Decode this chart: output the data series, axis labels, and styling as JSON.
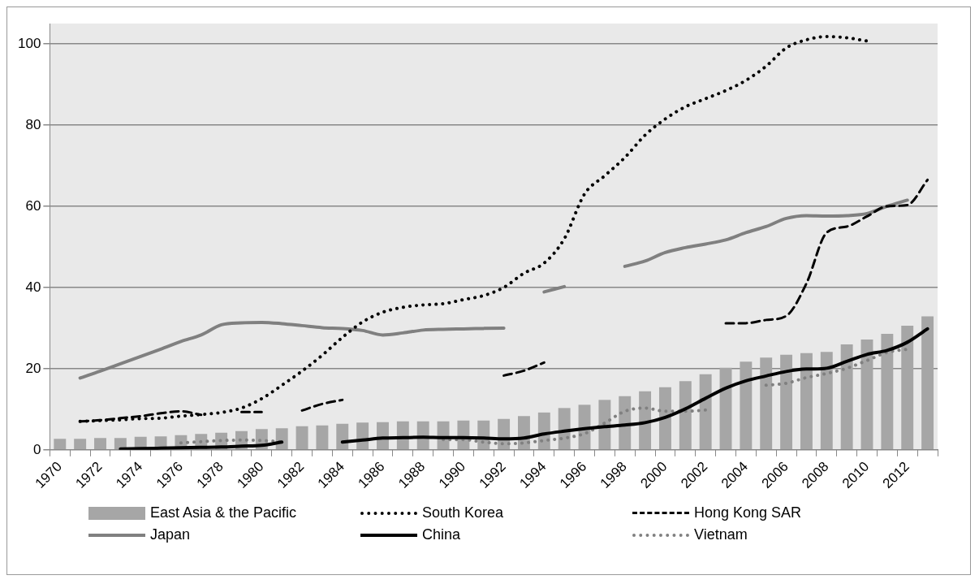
{
  "chart_data": {
    "type": "line",
    "categories": [
      "1970",
      null,
      "1972",
      null,
      "1974",
      null,
      "1976",
      null,
      "1978",
      null,
      "1980",
      null,
      "1982",
      null,
      "1984",
      null,
      "1986",
      null,
      "1988",
      null,
      "1990",
      null,
      "1992",
      null,
      "1994",
      null,
      "1996",
      null,
      "1998",
      null,
      "2000",
      null,
      "2002",
      null,
      "2004",
      null,
      "2006",
      null,
      "2008",
      null,
      "2010",
      null,
      "2012",
      null
    ],
    "series": [
      {
        "name": "East Asia & the Pacific",
        "type": "bar",
        "color": "#a6a6a6",
        "values": [
          2.7,
          2.7,
          2.9,
          2.9,
          3.2,
          3.3,
          3.6,
          3.9,
          4.2,
          4.6,
          5.1,
          5.3,
          5.8,
          6.0,
          6.4,
          6.7,
          6.8,
          7.0,
          7.0,
          7.0,
          7.2,
          7.2,
          7.6,
          8.3,
          9.2,
          10.3,
          11.1,
          12.3,
          13.2,
          14.4,
          15.4,
          16.9,
          18.6,
          20.2,
          21.7,
          22.7,
          23.4,
          23.8,
          24.1,
          26.0,
          27.2,
          28.6,
          30.6,
          32.9
        ]
      },
      {
        "name": "South Korea",
        "line_style": "dotted",
        "color": "#000000",
        "values": [
          null,
          7.0,
          7.2,
          7.4,
          7.7,
          7.8,
          8.3,
          8.7,
          9.2,
          10.3,
          12.6,
          15.9,
          19.4,
          23.3,
          27.7,
          31.5,
          33.9,
          35.1,
          35.7,
          36,
          37,
          38,
          40,
          43.5,
          46,
          52,
          63,
          67.5,
          72,
          77.5,
          81.5,
          84.5,
          86.5,
          88.5,
          91,
          94.5,
          99,
          101,
          101.8,
          101.5,
          100.7,
          null,
          null,
          null
        ]
      },
      {
        "name": "Hong Kong SAR",
        "line_style": "dashed",
        "color": "#000000",
        "values": [
          null,
          7.0,
          7.3,
          7.8,
          8.3,
          9.0,
          9.5,
          8.6,
          null,
          9.3,
          9.3,
          null,
          9.7,
          11.3,
          12.3,
          null,
          null,
          null,
          null,
          null,
          null,
          null,
          18.3,
          19.5,
          21.5,
          null,
          null,
          null,
          null,
          null,
          null,
          null,
          null,
          31.2,
          31.2,
          32,
          33,
          41,
          53.5,
          55,
          57.5,
          60,
          60.3,
          66.5
        ]
      },
      {
        "name": "Japan",
        "line_style": "solid",
        "color": "#808080",
        "values": [
          null,
          17.7,
          19.4,
          21.2,
          23.0,
          24.8,
          26.7,
          28.3,
          30.8,
          31.3,
          31.4,
          31.1,
          30.6,
          30.1,
          29.9,
          29.4,
          28.3,
          28.8,
          29.5,
          29.7,
          29.8,
          29.9,
          30.0,
          null,
          38.9,
          40.2,
          null,
          null,
          45.2,
          46.5,
          48.6,
          49.8,
          50.7,
          51.7,
          53.5,
          55.0,
          57.0,
          57.7,
          57.6,
          57.7,
          58.2,
          60.0,
          61.5,
          null
        ]
      },
      {
        "name": "China",
        "line_style": "solid",
        "color": "#000000",
        "values": [
          null,
          null,
          null,
          0.2,
          0.3,
          0.4,
          0.5,
          0.6,
          0.7,
          0.9,
          1.1,
          1.9,
          null,
          null,
          1.9,
          2.4,
          2.9,
          3.0,
          3.1,
          3.0,
          3.0,
          2.9,
          2.7,
          2.9,
          3.9,
          4.6,
          5.2,
          5.7,
          6.1,
          6.7,
          8.0,
          10.1,
          12.7,
          15.2,
          17.0,
          18.2,
          19.3,
          19.9,
          20.1,
          21.8,
          23.5,
          24.5,
          26.5,
          29.8
        ]
      },
      {
        "name": "Vietnam",
        "line_style": "dotted",
        "color": "#808080",
        "values": [
          null,
          null,
          null,
          null,
          null,
          null,
          1.7,
          2.0,
          2.3,
          2.4,
          2.3,
          2.0,
          null,
          null,
          null,
          null,
          null,
          null,
          null,
          2.5,
          2.5,
          1.9,
          1.5,
          1.7,
          2.3,
          2.9,
          4.0,
          6.6,
          9.5,
          10.3,
          9.5,
          9.5,
          9.8,
          null,
          null,
          15.9,
          16.4,
          17.8,
          18.8,
          20.1,
          22,
          24,
          24.8,
          null
        ]
      }
    ],
    "ylim": [
      0,
      105
    ],
    "yticks": [
      0,
      20,
      40,
      60,
      80,
      100
    ],
    "grid": "y",
    "legend": "bottom"
  }
}
